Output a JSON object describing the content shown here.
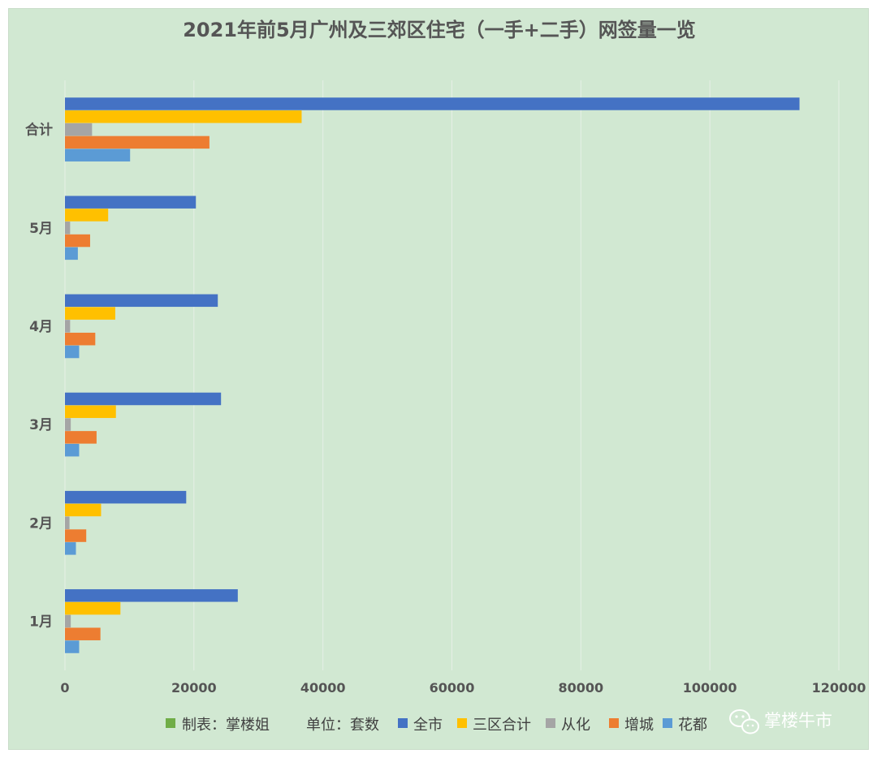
{
  "chart_data": {
    "type": "bar",
    "orientation": "horizontal",
    "title": "2021年前5月广州及三郊区住宅（一手+二手）网签量一览",
    "categories": [
      "合计",
      "5月",
      "4月",
      "3月",
      "2月",
      "1月"
    ],
    "series": [
      {
        "name": "全市",
        "color": "#4472c4",
        "values": [
          113900,
          20300,
          23700,
          24200,
          18800,
          26800
        ]
      },
      {
        "name": "三区合计",
        "color": "#ffc000",
        "values": [
          36700,
          6700,
          7800,
          7900,
          5600,
          8600
        ]
      },
      {
        "name": "从化",
        "color": "#a5a5a5",
        "values": [
          4200,
          800,
          800,
          900,
          700,
          900
        ]
      },
      {
        "name": "增城",
        "color": "#ed7d31",
        "values": [
          22400,
          3900,
          4700,
          4900,
          3300,
          5500
        ]
      },
      {
        "name": "花都",
        "color": "#5b9bd5",
        "values": [
          10100,
          2000,
          2200,
          2200,
          1700,
          2200
        ]
      }
    ],
    "xlim": [
      0,
      120000
    ],
    "xticks": [
      "0",
      "20000",
      "40000",
      "60000",
      "80000",
      "100000",
      "120000"
    ],
    "grid": true,
    "legend_position": "bottom"
  },
  "legend": {
    "source_label": "制表：掌楼姐",
    "source_color": "#70ad47",
    "unit_label": "单位：套数"
  },
  "watermark": {
    "text": "掌楼牛市",
    "icon": "wechat-icon"
  }
}
